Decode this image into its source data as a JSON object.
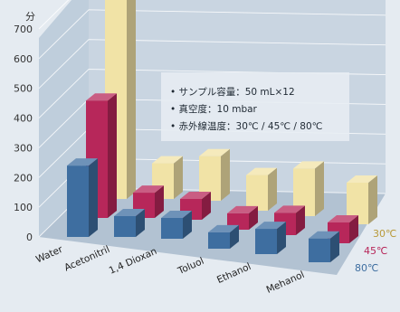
{
  "chart_data": {
    "type": "bar",
    "y_unit": "分",
    "yticks": [
      0,
      100,
      200,
      300,
      400,
      500,
      600,
      700
    ],
    "ylim": [
      0,
      700
    ],
    "grid": true,
    "categories": [
      "Water",
      "Acetonitril",
      "1,4 Dioxan",
      "Toluol",
      "Ethanol",
      "Mehanol"
    ],
    "series": [
      {
        "name": "30℃",
        "color": "#f1e3a6",
        "values": [
          670,
          120,
          150,
          120,
          160,
          140
        ]
      },
      {
        "name": "45℃",
        "color": "#b7275a",
        "values": [
          395,
          85,
          70,
          55,
          75,
          70
        ]
      },
      {
        "name": "80℃",
        "color": "#3e6ea0",
        "values": [
          240,
          70,
          70,
          55,
          85,
          80
        ]
      }
    ],
    "legend_position": "bottom-right",
    "annotations": [
      "• サンプル容量：50 mL×12",
      "• 真空度：10 mbar",
      "• 赤外線温度：30℃ / 45℃ / 80℃"
    ]
  }
}
